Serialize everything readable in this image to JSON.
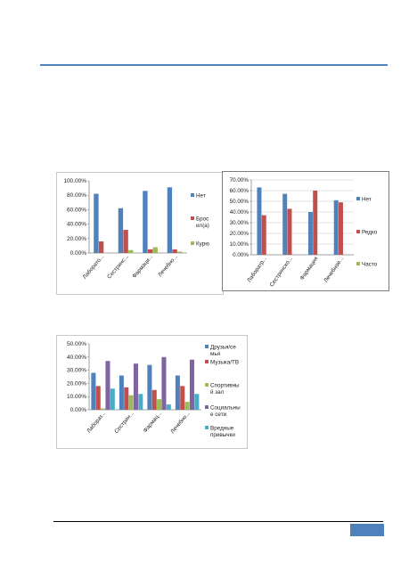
{
  "colors": {
    "accent": "#4f81bd",
    "series_blue": "#4f81bd",
    "series_red": "#c0504d",
    "series_green": "#9bbb59",
    "series_purple": "#8064a2",
    "series_cyan": "#4bacc6"
  },
  "chart_data": [
    {
      "type": "bar",
      "categories": [
        "Лаборато...",
        "Сестринс...",
        "Фармаци...",
        "Лечебно..."
      ],
      "series": [
        {
          "name": "Нет",
          "color": "#4f81bd",
          "values": [
            82,
            62,
            86,
            91
          ]
        },
        {
          "name": "Брос ил(а)",
          "color": "#c0504d",
          "values": [
            16,
            32,
            5,
            5
          ]
        },
        {
          "name": "Курю",
          "color": "#9bbb59",
          "values": [
            0,
            4,
            8,
            2
          ]
        }
      ],
      "ylim": [
        0,
        100
      ],
      "yticks": [
        "0.00%",
        "20.00%",
        "40.00%",
        "60.00%",
        "80.00%",
        "100.00%"
      ],
      "legend": "right",
      "grid": false
    },
    {
      "type": "bar",
      "categories": [
        "Лаборатр...",
        "Сестринско...",
        "Фармация",
        "Лечебное..."
      ],
      "series": [
        {
          "name": "Нет",
          "color": "#4f81bd",
          "values": [
            63,
            57,
            40,
            51
          ]
        },
        {
          "name": "Редко",
          "color": "#c0504d",
          "values": [
            37,
            43,
            60,
            49
          ]
        },
        {
          "name": "Часто",
          "color": "#9bbb59",
          "values": [
            0,
            0,
            0,
            0
          ]
        }
      ],
      "ylim": [
        0,
        70
      ],
      "yticks": [
        "0.00%",
        "10.00%",
        "20.00%",
        "30.00%",
        "40.00%",
        "50.00%",
        "60.00%",
        "70.00%"
      ],
      "legend": "right",
      "grid": true
    },
    {
      "type": "bar",
      "categories": [
        "Лаборат...",
        "Сестрин...",
        "Фармац...",
        "Лечебно..."
      ],
      "series": [
        {
          "name": "Друзья/се мья",
          "color": "#4f81bd",
          "values": [
            28,
            26,
            34,
            26
          ]
        },
        {
          "name": "Музыка/ТВ",
          "color": "#c0504d",
          "values": [
            18,
            17,
            15,
            18
          ]
        },
        {
          "name": "Спортивны й зал",
          "color": "#9bbb59",
          "values": [
            1,
            11,
            8,
            6
          ]
        },
        {
          "name": "Социальны е сети",
          "color": "#8064a2",
          "values": [
            37,
            35,
            40,
            38
          ]
        },
        {
          "name": "Вредные привычки",
          "color": "#4bacc6",
          "values": [
            16,
            12,
            4,
            12
          ]
        }
      ],
      "ylim": [
        0,
        50
      ],
      "yticks": [
        "0.00%",
        "10.00%",
        "20.00%",
        "30.00%",
        "40.00%",
        "50.00%"
      ],
      "legend": "right",
      "grid": false
    }
  ]
}
